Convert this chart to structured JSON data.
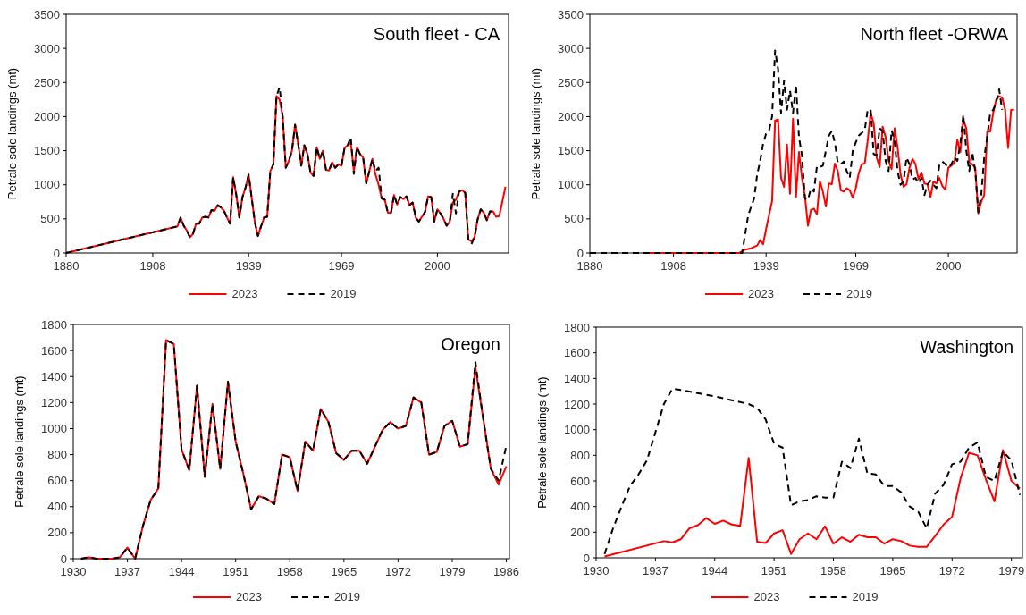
{
  "chart_data": [
    {
      "type": "line",
      "title": "South fleet - CA",
      "ylabel": "Petrale sole landings (mt)",
      "xlim": [
        1880,
        2023
      ],
      "xticks": [
        1880,
        1908,
        1939,
        1969,
        2000
      ],
      "ylim": [
        0,
        3500
      ],
      "yticks": [
        0,
        500,
        1000,
        1500,
        2000,
        2500,
        3000,
        3500
      ],
      "grid": false,
      "legend": "bottom",
      "marker": "none",
      "series": [
        {
          "name": "2023",
          "color": "#ff0000",
          "line_style": "solid",
          "x": [
            1880,
            1916,
            1917,
            1918,
            1919,
            1920,
            1921,
            1922,
            1923,
            1924,
            1925,
            1926,
            1927,
            1928,
            1929,
            1930,
            1931,
            1932,
            1933,
            1934,
            1935,
            1936,
            1937,
            1938,
            1939,
            1940,
            1941,
            1942,
            1943,
            1944,
            1945,
            1946,
            1947,
            1948,
            1949,
            1950,
            1951,
            1952,
            1953,
            1954,
            1955,
            1956,
            1957,
            1958,
            1959,
            1960,
            1961,
            1962,
            1963,
            1964,
            1965,
            1966,
            1967,
            1968,
            1969,
            1970,
            1971,
            1972,
            1973,
            1974,
            1975,
            1976,
            1977,
            1978,
            1979,
            1980,
            1981,
            1982,
            1983,
            1984,
            1985,
            1986,
            1987,
            1988,
            1989,
            1990,
            1991,
            1992,
            1993,
            1994,
            1995,
            1996,
            1997,
            1998,
            1999,
            2000,
            2001,
            2002,
            2003,
            2004,
            2005,
            2006,
            2007,
            2008,
            2009,
            2010,
            2011,
            2012,
            2013,
            2014,
            2015,
            2016,
            2017,
            2018,
            2019,
            2020,
            2021,
            2022
          ],
          "values": [
            0,
            390,
            520,
            400,
            330,
            230,
            280,
            430,
            430,
            520,
            530,
            520,
            630,
            620,
            700,
            670,
            620,
            520,
            430,
            1110,
            850,
            520,
            820,
            960,
            1150,
            800,
            450,
            250,
            390,
            520,
            530,
            1200,
            1300,
            2300,
            2250,
            2000,
            1250,
            1350,
            1500,
            1880,
            1600,
            1280,
            1580,
            1450,
            1180,
            1130,
            1550,
            1380,
            1500,
            1220,
            1210,
            1330,
            1250,
            1300,
            1280,
            1540,
            1580,
            1620,
            1200,
            1550,
            1450,
            1400,
            1020,
            1200,
            1380,
            1150,
            1000,
            800,
            780,
            590,
            590,
            850,
            710,
            820,
            790,
            830,
            700,
            740,
            520,
            460,
            530,
            600,
            830,
            820,
            460,
            640,
            580,
            500,
            400,
            460,
            740,
            780,
            900,
            920,
            880,
            200,
            170,
            230,
            490,
            640,
            590,
            480,
            610,
            610,
            530,
            540,
            750,
            970
          ]
        },
        {
          "name": "2019",
          "color": "#000000",
          "line_style": "dashed",
          "x": [
            1880,
            1916,
            1917,
            1918,
            1919,
            1920,
            1921,
            1922,
            1923,
            1924,
            1925,
            1926,
            1927,
            1928,
            1929,
            1930,
            1931,
            1932,
            1933,
            1934,
            1935,
            1936,
            1937,
            1938,
            1939,
            1940,
            1941,
            1942,
            1943,
            1944,
            1945,
            1946,
            1947,
            1948,
            1949,
            1950,
            1951,
            1952,
            1953,
            1954,
            1955,
            1956,
            1957,
            1958,
            1959,
            1960,
            1961,
            1962,
            1963,
            1964,
            1965,
            1966,
            1967,
            1968,
            1969,
            1970,
            1971,
            1972,
            1973,
            1974,
            1975,
            1976,
            1977,
            1978,
            1979,
            1980,
            1981,
            1982,
            1983,
            1984,
            1985,
            1986,
            1987,
            1988,
            1989,
            1990,
            1991,
            1992,
            1993,
            1994,
            1995,
            1996,
            1997,
            1998,
            1999,
            2000,
            2001,
            2002,
            2003,
            2004,
            2005,
            2006,
            2007,
            2008,
            2009,
            2010,
            2011,
            2012,
            2013,
            2014,
            2015,
            2016,
            2017,
            2018
          ],
          "values": [
            0,
            390,
            520,
            400,
            330,
            230,
            280,
            430,
            430,
            520,
            530,
            520,
            630,
            620,
            700,
            670,
            620,
            520,
            430,
            1110,
            850,
            520,
            820,
            960,
            1150,
            800,
            450,
            250,
            390,
            520,
            530,
            1200,
            1300,
            2300,
            2430,
            2000,
            1250,
            1350,
            1500,
            1880,
            1600,
            1280,
            1580,
            1450,
            1180,
            1130,
            1550,
            1380,
            1500,
            1220,
            1210,
            1330,
            1250,
            1300,
            1280,
            1540,
            1580,
            1700,
            1160,
            1550,
            1450,
            1400,
            1020,
            1200,
            1380,
            1200,
            1250,
            800,
            780,
            590,
            590,
            850,
            710,
            820,
            790,
            830,
            700,
            740,
            520,
            460,
            530,
            600,
            830,
            820,
            460,
            640,
            580,
            500,
            400,
            460,
            870,
            580,
            900,
            920,
            880,
            200,
            130,
            230,
            490,
            640,
            590,
            480,
            610,
            610
          ]
        }
      ]
    },
    {
      "type": "line",
      "title": "North fleet -ORWA",
      "ylabel": "Petrale sole landings (mt)",
      "xlim": [
        1880,
        2023
      ],
      "xticks": [
        1880,
        1908,
        1939,
        1969,
        2000
      ],
      "ylim": [
        0,
        3500
      ],
      "yticks": [
        0,
        500,
        1000,
        1500,
        2000,
        2500,
        3000,
        3500
      ],
      "grid": false,
      "legend": "bottom",
      "marker": "none",
      "series": [
        {
          "name": "2023",
          "color": "#ff0000",
          "line_style": "solid",
          "x": [
            1900,
            1905,
            1910,
            1915,
            1920,
            1925,
            1930,
            1931,
            1932,
            1933,
            1934,
            1935,
            1936,
            1937,
            1938,
            1939,
            1940,
            1941,
            1942,
            1943,
            1944,
            1945,
            1946,
            1947,
            1948,
            1949,
            1950,
            1951,
            1952,
            1953,
            1954,
            1955,
            1956,
            1957,
            1958,
            1959,
            1960,
            1961,
            1962,
            1963,
            1964,
            1965,
            1966,
            1967,
            1968,
            1969,
            1970,
            1971,
            1972,
            1973,
            1974,
            1975,
            1976,
            1977,
            1978,
            1979,
            1980,
            1981,
            1982,
            1983,
            1984,
            1985,
            1986,
            1987,
            1988,
            1989,
            1990,
            1991,
            1992,
            1993,
            1994,
            1995,
            1996,
            1997,
            1998,
            1999,
            2000,
            2001,
            2002,
            2003,
            2004,
            2005,
            2006,
            2007,
            2008,
            2009,
            2010,
            2011,
            2012,
            2013,
            2014,
            2015,
            2016,
            2017,
            2018,
            2019,
            2020,
            2021,
            2022
          ],
          "values": [
            0,
            0,
            0,
            0,
            0,
            0,
            0,
            30,
            50,
            60,
            70,
            90,
            110,
            190,
            130,
            350,
            560,
            760,
            1940,
            1960,
            1100,
            970,
            1590,
            870,
            1970,
            820,
            1480,
            1100,
            830,
            400,
            630,
            650,
            570,
            1050,
            900,
            680,
            1020,
            1010,
            1310,
            1200,
            920,
            900,
            950,
            920,
            810,
            950,
            1170,
            1300,
            1310,
            1650,
            2050,
            1900,
            1400,
            1260,
            1850,
            1700,
            1350,
            1230,
            1830,
            1550,
            1150,
            970,
            1010,
            1250,
            1380,
            1300,
            1080,
            1180,
            1020,
            1010,
            820,
            1050,
            1020,
            1100,
            980,
            930,
            1250,
            1280,
            1320,
            1660,
            1480,
            1950,
            1830,
            1330,
            1300,
            1250,
            580,
            750,
            850,
            1780,
            1780,
            2050,
            2250,
            2300,
            2280,
            2100,
            1540,
            2100,
            2100
          ]
        },
        {
          "name": "2019",
          "color": "#000000",
          "line_style": "dashed",
          "x": [
            1880,
            1890,
            1900,
            1910,
            1920,
            1930,
            1931,
            1932,
            1933,
            1934,
            1935,
            1936,
            1937,
            1938,
            1939,
            1940,
            1941,
            1942,
            1943,
            1944,
            1945,
            1946,
            1947,
            1948,
            1949,
            1950,
            1951,
            1952,
            1953,
            1954,
            1955,
            1956,
            1957,
            1958,
            1959,
            1960,
            1961,
            1962,
            1963,
            1964,
            1965,
            1966,
            1967,
            1968,
            1969,
            1970,
            1971,
            1972,
            1973,
            1974,
            1975,
            1976,
            1977,
            1978,
            1979,
            1980,
            1981,
            1982,
            1983,
            1984,
            1985,
            1986,
            1987,
            1988,
            1989,
            1990,
            1991,
            1992,
            1993,
            1994,
            1995,
            1996,
            1997,
            1998,
            1999,
            2000,
            2001,
            2002,
            2003,
            2004,
            2005,
            2006,
            2007,
            2008,
            2009,
            2010,
            2011,
            2012,
            2013,
            2014,
            2015,
            2016,
            2017,
            2018
          ],
          "values": [
            0,
            0,
            0,
            0,
            0,
            0,
            0,
            280,
            550,
            680,
            800,
            1150,
            1350,
            1600,
            1750,
            1800,
            2000,
            2970,
            2700,
            2050,
            2530,
            2100,
            2380,
            2050,
            2470,
            1700,
            1430,
            800,
            780,
            950,
            900,
            1270,
            1260,
            1280,
            1500,
            1720,
            1790,
            1620,
            1320,
            1300,
            1340,
            1200,
            1100,
            1500,
            1620,
            1720,
            1760,
            1800,
            2100,
            2100,
            1450,
            1430,
            1830,
            1780,
            1350,
            1200,
            1800,
            1650,
            1200,
            1000,
            1050,
            1400,
            1300,
            1080,
            1100,
            1020,
            1100,
            850,
            1000,
            1060,
            1000,
            950,
            1300,
            1340,
            1300,
            1250,
            1300,
            1400,
            1350,
            1600,
            2030,
            1500,
            1200,
            1480,
            1200,
            600,
            850,
            1400,
            1700,
            2050,
            2100,
            2200,
            2400,
            2100
          ]
        }
      ]
    },
    {
      "type": "line",
      "title": "Oregon",
      "ylabel": "Petrale sole landings (mt)",
      "xlim": [
        1930,
        1986.4
      ],
      "xticks": [
        1930,
        1937,
        1944,
        1951,
        1958,
        1965,
        1972,
        1979,
        1986
      ],
      "ylim": [
        0,
        1800
      ],
      "yticks": [
        0,
        200,
        400,
        600,
        800,
        1000,
        1200,
        1400,
        1600,
        1800
      ],
      "grid": false,
      "legend": "bottom",
      "marker": "none",
      "series": [
        {
          "name": "2023",
          "color": "#ff0000",
          "line_style": "solid",
          "x": [
            1931,
            1932,
            1933,
            1934,
            1935,
            1936,
            1937,
            1938,
            1939,
            1940,
            1941,
            1942,
            1943,
            1944,
            1945,
            1946,
            1947,
            1948,
            1949,
            1950,
            1951,
            1952,
            1953,
            1954,
            1955,
            1956,
            1957,
            1958,
            1959,
            1960,
            1961,
            1962,
            1963,
            1964,
            1965,
            1966,
            1967,
            1968,
            1969,
            1970,
            1971,
            1972,
            1973,
            1974,
            1975,
            1976,
            1977,
            1978,
            1979,
            1980,
            1981,
            1982,
            1983,
            1984,
            1985,
            1986
          ],
          "values": [
            0,
            10,
            0,
            0,
            0,
            10,
            85,
            0,
            250,
            450,
            540,
            1680,
            1650,
            840,
            680,
            1330,
            630,
            1190,
            690,
            1360,
            900,
            650,
            380,
            480,
            460,
            420,
            800,
            780,
            520,
            900,
            830,
            1150,
            1050,
            810,
            760,
            830,
            830,
            730,
            860,
            990,
            1050,
            1000,
            1020,
            1240,
            1200,
            800,
            820,
            1020,
            1060,
            860,
            880,
            1470,
            1080,
            690,
            570,
            710
          ]
        },
        {
          "name": "2019",
          "color": "#000000",
          "line_style": "dashed",
          "x": [
            1931,
            1932,
            1933,
            1934,
            1935,
            1936,
            1937,
            1938,
            1939,
            1940,
            1941,
            1942,
            1943,
            1944,
            1945,
            1946,
            1947,
            1948,
            1949,
            1950,
            1951,
            1952,
            1953,
            1954,
            1955,
            1956,
            1957,
            1958,
            1959,
            1960,
            1961,
            1962,
            1963,
            1964,
            1965,
            1966,
            1967,
            1968,
            1969,
            1970,
            1971,
            1972,
            1973,
            1974,
            1975,
            1976,
            1977,
            1978,
            1979,
            1980,
            1981,
            1982,
            1983,
            1984,
            1985,
            1986
          ],
          "values": [
            0,
            10,
            0,
            0,
            0,
            10,
            85,
            0,
            250,
            450,
            540,
            1680,
            1650,
            840,
            680,
            1330,
            630,
            1190,
            690,
            1360,
            900,
            650,
            380,
            480,
            460,
            420,
            800,
            780,
            520,
            900,
            830,
            1150,
            1050,
            810,
            760,
            830,
            830,
            730,
            860,
            990,
            1050,
            1000,
            1020,
            1240,
            1200,
            800,
            820,
            1020,
            1060,
            860,
            880,
            1510,
            1080,
            690,
            600,
            870
          ]
        }
      ]
    },
    {
      "type": "line",
      "title": "Washington",
      "ylabel": "Petrale sole landings (mt)",
      "xlim": [
        1930,
        1980.3
      ],
      "xticks": [
        1930,
        1937,
        1944,
        1951,
        1958,
        1965,
        1972,
        1979
      ],
      "ylim": [
        0,
        1800
      ],
      "yticks": [
        0,
        200,
        400,
        600,
        800,
        1000,
        1200,
        1400,
        1600,
        1800
      ],
      "grid": false,
      "legend": "bottom",
      "marker": "none",
      "series": [
        {
          "name": "2023",
          "color": "#ff0000",
          "line_style": "solid",
          "x": [
            1931,
            1938,
            1939,
            1940,
            1941,
            1942,
            1943,
            1944,
            1945,
            1946,
            1947,
            1948,
            1949,
            1950,
            1951,
            1952,
            1953,
            1954,
            1955,
            1956,
            1957,
            1958,
            1959,
            1960,
            1961,
            1962,
            1963,
            1964,
            1965,
            1966,
            1967,
            1968,
            1969,
            1970,
            1971,
            1972,
            1973,
            1974,
            1975,
            1976,
            1977,
            1978,
            1979,
            1980
          ],
          "values": [
            10,
            130,
            120,
            145,
            230,
            255,
            310,
            265,
            290,
            260,
            250,
            780,
            125,
            115,
            190,
            215,
            30,
            145,
            190,
            145,
            245,
            110,
            160,
            125,
            180,
            160,
            160,
            110,
            145,
            130,
            95,
            85,
            85,
            170,
            260,
            320,
            620,
            820,
            800,
            610,
            440,
            840,
            600,
            540
          ]
        },
        {
          "name": "2019",
          "color": "#000000",
          "line_style": "dashed",
          "x": [
            1931,
            1932,
            1933,
            1934,
            1935,
            1936,
            1937,
            1938,
            1939,
            1940,
            1944,
            1948,
            1949,
            1950,
            1951,
            1952,
            1953,
            1954,
            1955,
            1956,
            1957,
            1958,
            1959,
            1960,
            1961,
            1962,
            1963,
            1964,
            1965,
            1966,
            1967,
            1968,
            1969,
            1970,
            1971,
            1972,
            1973,
            1974,
            1975,
            1976,
            1977,
            1978,
            1979,
            1980
          ],
          "values": [
            30,
            230,
            400,
            560,
            650,
            760,
            980,
            1200,
            1320,
            1310,
            1260,
            1200,
            1170,
            1080,
            890,
            860,
            410,
            440,
            450,
            480,
            470,
            470,
            750,
            700,
            930,
            660,
            650,
            560,
            560,
            510,
            400,
            360,
            230,
            500,
            570,
            730,
            750,
            860,
            900,
            630,
            600,
            830,
            760,
            490
          ]
        }
      ]
    }
  ]
}
